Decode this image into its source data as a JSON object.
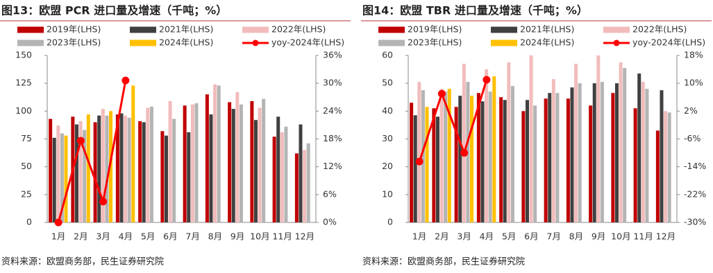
{
  "chart_data": [
    {
      "type": "bar",
      "title": "图13：欧盟 PCR 进口量及增速（千吨；%）",
      "source": "资料来源：欧盟商务部，民生证券研究院",
      "categories": [
        "1月",
        "2月",
        "3月",
        "4月",
        "5月",
        "6月",
        "7月",
        "8月",
        "9月",
        "10月",
        "11月",
        "12月"
      ],
      "ylim": [
        0,
        150
      ],
      "yticks": [
        0,
        25,
        50,
        75,
        100,
        125,
        150
      ],
      "y2lim": [
        0,
        36
      ],
      "y2ticks": [
        {
          "value": 0,
          "label": "0%"
        },
        {
          "value": 6,
          "label": "6%"
        },
        {
          "value": 12,
          "label": "12%"
        },
        {
          "value": 18,
          "label": "18%"
        },
        {
          "value": 24,
          "label": "24%"
        },
        {
          "value": 30,
          "label": "30%"
        },
        {
          "value": 36,
          "label": "36%"
        }
      ],
      "series": [
        {
          "name": "2019年(LHS)",
          "color": "#c00000",
          "values": [
            93,
            95,
            90,
            97,
            91,
            82,
            105,
            115,
            108,
            109,
            77,
            62
          ]
        },
        {
          "name": "2021年(LHS)",
          "color": "#404040",
          "values": [
            76,
            88,
            96,
            98,
            90,
            78,
            81,
            97,
            102,
            92,
            95,
            88
          ]
        },
        {
          "name": "2022年(LHS)",
          "color": "#f2bcbc",
          "values": [
            87,
            91,
            102,
            96,
            103,
            109,
            106,
            124,
            117,
            103,
            81,
            65
          ]
        },
        {
          "name": "2023年(LHS)",
          "color": "#b4b4b4",
          "values": [
            80,
            83,
            96,
            94,
            104,
            93,
            107,
            123,
            106,
            111,
            86,
            71
          ]
        },
        {
          "name": "2024年(LHS)",
          "color": "#ffc000",
          "values": [
            78,
            97,
            100,
            123,
            null,
            null,
            null,
            null,
            null,
            null,
            null,
            null
          ]
        },
        {
          "name": "yoy-2024年(LHS)",
          "color": "#ff0000",
          "type": "line",
          "axis": "y2",
          "values": [
            0,
            17.6,
            4.5,
            30.6,
            null,
            null,
            null,
            null,
            null,
            null,
            null,
            null
          ]
        }
      ]
    },
    {
      "type": "bar",
      "title": "图14：欧盟 TBR 进口量及增速（千吨；%）",
      "source": "资料来源：欧盟商务部，民生证券研究院",
      "categories": [
        "1月",
        "2月",
        "3月",
        "4月",
        "5月",
        "6月",
        "7月",
        "8月",
        "9月",
        "10月",
        "11月",
        "12月"
      ],
      "ylim": [
        0,
        60
      ],
      "yticks": [
        0,
        10,
        20,
        30,
        40,
        50,
        60
      ],
      "y2lim": [
        -30,
        18
      ],
      "y2ticks": [
        {
          "value": -30,
          "label": "-30%"
        },
        {
          "value": -22,
          "label": "-22%"
        },
        {
          "value": -14,
          "label": "-14%"
        },
        {
          "value": -6,
          "label": "-6%"
        },
        {
          "value": 2,
          "label": "2%"
        },
        {
          "value": 10,
          "label": "10%"
        },
        {
          "value": 18,
          "label": "18%"
        }
      ],
      "series": [
        {
          "name": "2019年(LHS)",
          "color": "#c00000",
          "values": [
            43,
            41,
            41.5,
            46.5,
            45,
            40,
            44.5,
            44.5,
            42,
            46.5,
            41,
            33
          ]
        },
        {
          "name": "2021年(LHS)",
          "color": "#404040",
          "values": [
            38.5,
            38,
            45.5,
            43.5,
            44,
            44,
            46.5,
            48.5,
            50,
            50,
            53.5,
            47.5
          ]
        },
        {
          "name": "2022年(LHS)",
          "color": "#f2bcbc",
          "values": [
            50.5,
            48,
            57,
            55,
            57.5,
            60,
            51.5,
            57,
            60,
            57.5,
            50.5,
            40
          ]
        },
        {
          "name": "2023年(LHS)",
          "color": "#b4b4b4",
          "values": [
            47.5,
            47,
            50.5,
            47,
            49,
            42,
            46.5,
            50,
            50.5,
            55.5,
            48,
            39.5
          ]
        },
        {
          "name": "2024年(LHS)",
          "color": "#ffc000",
          "values": [
            41.5,
            48,
            45.5,
            52.5,
            null,
            null,
            null,
            null,
            null,
            null,
            null,
            null
          ]
        },
        {
          "name": "yoy-2024年(LHS)",
          "color": "#ff0000",
          "type": "line",
          "axis": "y2",
          "values": [
            -12.5,
            7,
            -10,
            11,
            null,
            null,
            null,
            null,
            null,
            null,
            null,
            null
          ]
        }
      ]
    }
  ]
}
